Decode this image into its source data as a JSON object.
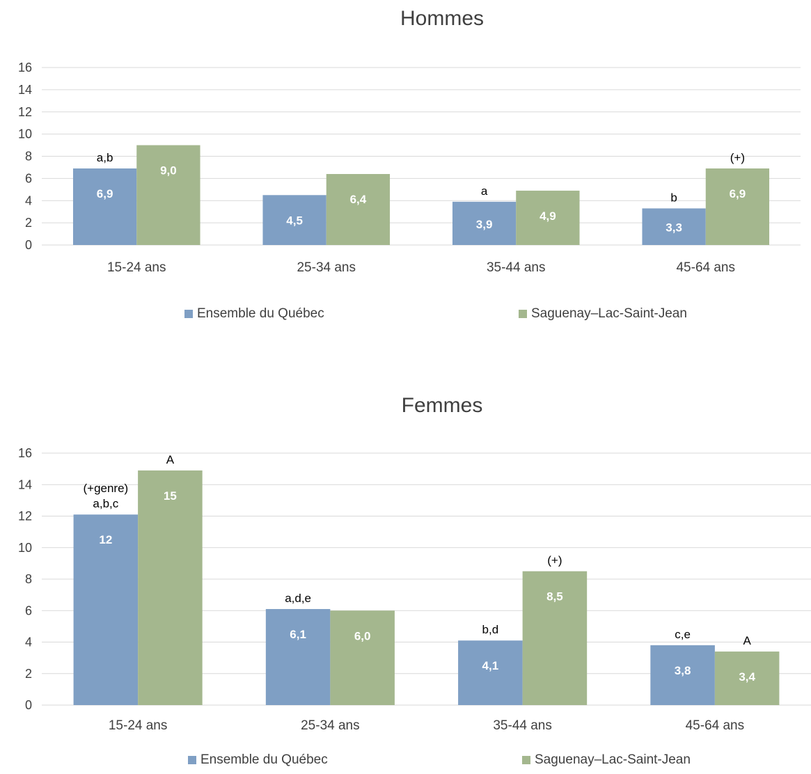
{
  "colors": {
    "quebec": "#7f9fc4",
    "slsj": "#a4b78e",
    "grid": "#d9d9d9",
    "axis_text": "#404040"
  },
  "chart_data": [
    {
      "type": "bar",
      "title": "Hommes",
      "categories": [
        "15-24 ans",
        "25-34 ans",
        "35-44 ans",
        "45-64 ans"
      ],
      "series": [
        {
          "name": "Ensemble du Québec",
          "values": [
            6.9,
            4.5,
            3.9,
            3.3
          ],
          "labels": [
            "6,9",
            "4,5",
            "3,9",
            "3,3"
          ],
          "annotations": [
            "a,b",
            "",
            "a",
            "b"
          ]
        },
        {
          "name": "Saguenay–Lac-Saint-Jean",
          "values": [
            9.0,
            6.4,
            4.9,
            6.9
          ],
          "labels": [
            "9,0",
            "6,4",
            "4,9",
            "6,9"
          ],
          "annotations": [
            "",
            "",
            "",
            "(+)"
          ]
        }
      ],
      "ylim": [
        0,
        16
      ],
      "yticks": [
        "0",
        "2",
        "4",
        "6",
        "8",
        "10",
        "12",
        "14",
        "16"
      ],
      "grid": true,
      "legend": "bottom"
    },
    {
      "type": "bar",
      "title": "Femmes",
      "categories": [
        "15-24 ans",
        "25-34 ans",
        "35-44 ans",
        "45-64 ans"
      ],
      "series": [
        {
          "name": "Ensemble du Québec",
          "values": [
            12.1,
            6.1,
            4.1,
            3.8
          ],
          "labels": [
            "12",
            "6,1",
            "4,1",
            "3,8"
          ],
          "annotations": [
            "(+genre)\na,b,c",
            "a,d,e",
            "b,d",
            "c,e"
          ]
        },
        {
          "name": "Saguenay–Lac-Saint-Jean",
          "values": [
            14.9,
            6.0,
            8.5,
            3.4
          ],
          "labels": [
            "15",
            "6,0",
            "8,5",
            "3,4"
          ],
          "annotations": [
            "A",
            "",
            "(+)",
            "A"
          ]
        }
      ],
      "ylim": [
        0,
        16
      ],
      "yticks": [
        "0",
        "2",
        "4",
        "6",
        "8",
        "10",
        "12",
        "14",
        "16"
      ],
      "grid": true,
      "legend": "bottom"
    }
  ]
}
